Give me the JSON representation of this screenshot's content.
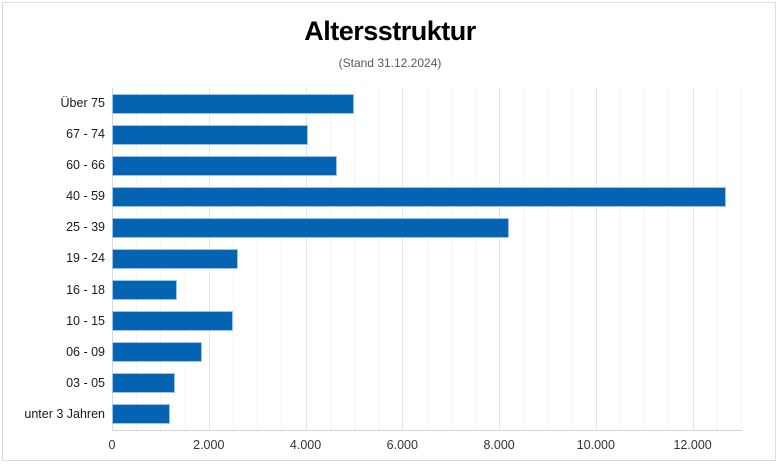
{
  "chart_data": {
    "type": "bar",
    "orientation": "horizontal",
    "title": "Altersstruktur",
    "subtitle": "(Stand 31.12.2024)",
    "categories": [
      "Über 75",
      "67 - 74",
      "60 - 66",
      "40 - 59",
      "25 - 39",
      "19 - 24",
      "16 - 18",
      "10 - 15",
      "06 - 09",
      "03 - 05",
      "unter 3 Jahren"
    ],
    "values": [
      5000,
      4050,
      4650,
      12700,
      8200,
      2600,
      1350,
      2500,
      1850,
      1300,
      1200
    ],
    "xlabel": "",
    "ylabel": "",
    "xlim": [
      0,
      13000
    ],
    "x_tick_interval": 2000,
    "x_minor_gridline_interval": 500,
    "x_tick_labels": [
      "0",
      "2.000",
      "4.000",
      "6.000",
      "8.000",
      "10.000",
      "12.000"
    ],
    "grid": true,
    "legend": "none",
    "bar_color": "#0564b1",
    "bar_border_color": "#9dc3e6",
    "major_gridline_color": "#e3e4ea",
    "minor_gridline_color": "#f4f4f6"
  }
}
